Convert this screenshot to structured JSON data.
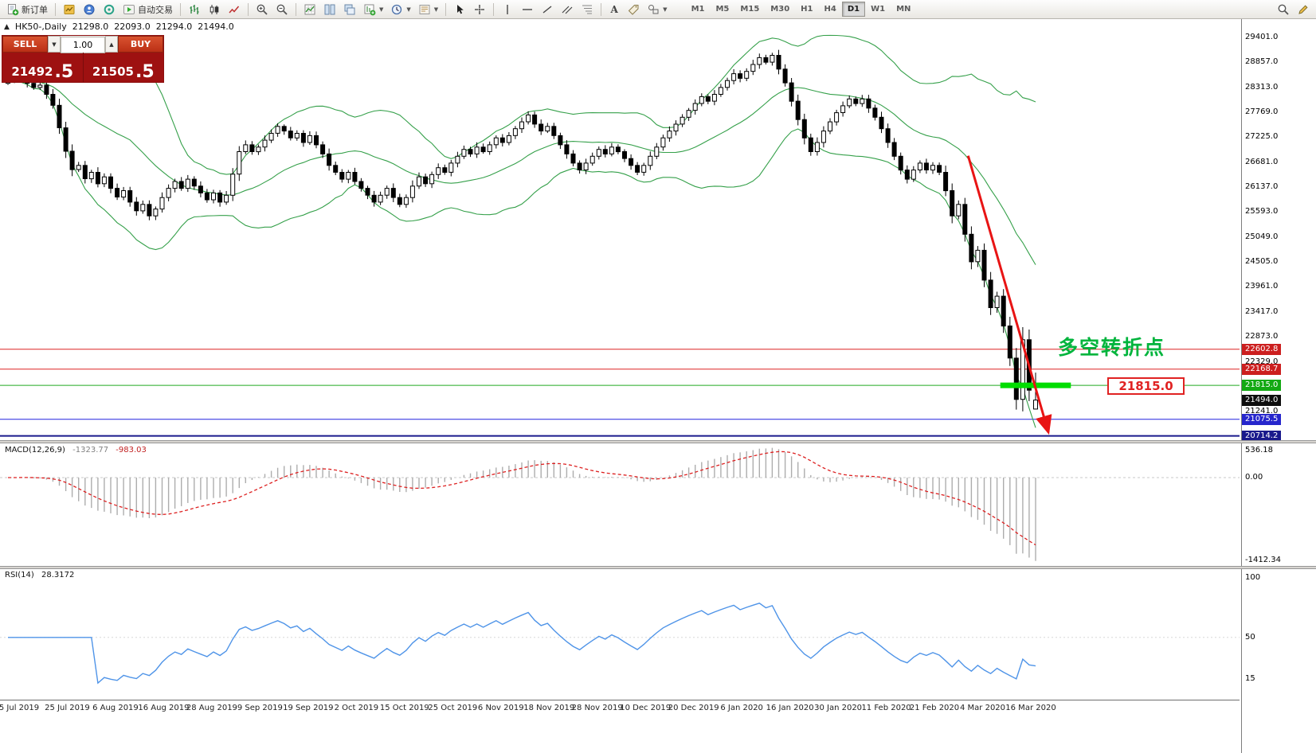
{
  "colors": {
    "bull": "#ffffff",
    "bear": "#000000",
    "candle_outline": "#000000",
    "band": "#35a04a",
    "macd_hist": "#adadad",
    "macd_signal": "#dd2020",
    "rsi_line": "#4f94e8",
    "arrow": "#e81414",
    "highlight": "#00dd00"
  },
  "toolbar": {
    "new_order_label": "新订单",
    "autotrading_label": "自动交易",
    "timeframes": [
      "M1",
      "M5",
      "M15",
      "M30",
      "H1",
      "H4",
      "D1",
      "W1",
      "MN"
    ],
    "active_timeframe": "D1"
  },
  "chart_header": {
    "symbol": "HK50-,Daily",
    "open": "21298.0",
    "high": "22093.0",
    "low": "21294.0",
    "close": "21494.0"
  },
  "quote_panel": {
    "sell_label": "SELL",
    "buy_label": "BUY",
    "volume": "1.00",
    "sell_price_main": "21492",
    "sell_price_pips": ".5",
    "buy_price_main": "21505",
    "buy_price_pips": ".5"
  },
  "annotations": {
    "turning_point_text": "多空转折点",
    "level_label": "21815.0"
  },
  "price_axis": {
    "ticks": [
      {
        "label": "29401.0",
        "price": 29401
      },
      {
        "label": "28857.0",
        "price": 28857
      },
      {
        "label": "28313.0",
        "price": 28313
      },
      {
        "label": "27769.0",
        "price": 27769
      },
      {
        "label": "27225.0",
        "price": 27225
      },
      {
        "label": "26681.0",
        "price": 26681
      },
      {
        "label": "26137.0",
        "price": 26137
      },
      {
        "label": "25593.0",
        "price": 25593
      },
      {
        "label": "25049.0",
        "price": 25049
      },
      {
        "label": "24505.0",
        "price": 24505
      },
      {
        "label": "23961.0",
        "price": 23961
      },
      {
        "label": "23417.0",
        "price": 23417
      },
      {
        "label": "22873.0",
        "price": 22873
      },
      {
        "label": "22329.0",
        "price": 22329
      },
      {
        "label": "21241.0",
        "price": 21241
      }
    ],
    "badges": [
      {
        "label": "22602.8",
        "price": 22602.8,
        "bg": "#cc1f1f"
      },
      {
        "label": "22168.7",
        "price": 22168.7,
        "bg": "#cc1f1f"
      },
      {
        "label": "21815.0",
        "price": 21815.0,
        "bg": "#13a913"
      },
      {
        "label": "21494.0",
        "price": 21494.0,
        "bg": "#0d0d0d"
      },
      {
        "label": "21075.5",
        "price": 21075.5,
        "bg": "#2626cc"
      },
      {
        "label": "20714.2",
        "price": 20714.2,
        "bg": "#1a1a8c"
      }
    ]
  },
  "macd_panel": {
    "name": "MACD(12,26,9)",
    "main_value": "-1323.77",
    "signal_value": "-983.03",
    "axis_max": "536.18",
    "axis_zero": "0.00",
    "axis_min": "-1412.34"
  },
  "rsi_panel": {
    "name": "RSI(14)",
    "value": "28.3172",
    "axis_labels": [
      {
        "label": "100",
        "value": 100
      },
      {
        "label": "50",
        "value": 50
      },
      {
        "label": "15",
        "value": 15
      }
    ]
  },
  "time_axis": {
    "labels": [
      "5 Jul 2019",
      "25 Jul 2019",
      "6 Aug 2019",
      "16 Aug 2019",
      "28 Aug 2019",
      "9 Sep 2019",
      "19 Sep 2019",
      "2 Oct 2019",
      "15 Oct 2019",
      "25 Oct 2019",
      "6 Nov 2019",
      "18 Nov 2019",
      "28 Nov 2019",
      "10 Dec 2019",
      "20 Dec 2019",
      "6 Jan 2020",
      "16 Jan 2020",
      "30 Jan 2020",
      "11 Feb 2020",
      "21 Feb 2020",
      "4 Mar 2020",
      "16 Mar 2020"
    ]
  },
  "chart_data": {
    "type": "candlestick",
    "symbol": "HK50-",
    "timeframe": "Daily",
    "price_domain_top": 29800,
    "price_domain_bottom": 20620,
    "first_open": 28400,
    "closes": [
      28450,
      28480,
      28520,
      28400,
      28310,
      28360,
      28160,
      27920,
      27430,
      26920,
      26520,
      26610,
      26320,
      26460,
      26210,
      26360,
      26110,
      25920,
      26060,
      25810,
      25620,
      25760,
      25510,
      25660,
      25910,
      26110,
      26260,
      26110,
      26310,
      26160,
      26010,
      25860,
      26010,
      25810,
      25960,
      26420,
      26910,
      27060,
      26910,
      27010,
      27160,
      27310,
      27460,
      27360,
      27210,
      27310,
      27110,
      27260,
      27060,
      26860,
      26610,
      26460,
      26310,
      26460,
      26260,
      26110,
      25960,
      25810,
      25960,
      26110,
      25910,
      25760,
      25910,
      26160,
      26360,
      26210,
      26410,
      26560,
      26460,
      26660,
      26810,
      26960,
      26860,
      27010,
      26910,
      27060,
      27210,
      27110,
      27260,
      27410,
      27560,
      27710,
      27510,
      27360,
      27460,
      27260,
      27060,
      26860,
      26660,
      26510,
      26660,
      26810,
      26960,
      26860,
      27010,
      26910,
      26760,
      26610,
      26460,
      26610,
      26810,
      27010,
      27210,
      27360,
      27510,
      27660,
      27810,
      27960,
      28110,
      28010,
      28160,
      28310,
      28460,
      28610,
      28510,
      28660,
      28810,
      28960,
      28860,
      29010,
      28710,
      28410,
      28010,
      27610,
      27210,
      26910,
      27110,
      27360,
      27560,
      27760,
      27910,
      28060,
      27960,
      28060,
      27860,
      27660,
      27410,
      27110,
      26810,
      26510,
      26310,
      26510,
      26660,
      26510,
      26610,
      26460,
      26060,
      25510,
      25760,
      25110,
      24510,
      24760,
      24110,
      23510,
      23760,
      23110,
      22410,
      21510,
      22810,
      21710,
      21494
    ],
    "last_candle_ohlc": [
      21298.0,
      22093.0,
      21294.0,
      21494.0
    ],
    "indicators": {
      "bollinger": {
        "period": 20,
        "deviation": 2
      },
      "macd": {
        "fast": 12,
        "slow": 26,
        "signal": 9,
        "readout_main": -1323.77,
        "readout_signal": -983.03
      },
      "rsi": {
        "period": 14,
        "readout": 28.3172
      }
    },
    "levels": [
      {
        "price": 22602.8,
        "color": "#dd2222",
        "width": 1
      },
      {
        "price": 22168.7,
        "color": "#dd2222",
        "width": 1
      },
      {
        "price": 21815.0,
        "color": "#22aa22",
        "width": 1
      },
      {
        "price": 21075.5,
        "color": "#2222dd",
        "width": 1
      },
      {
        "price": 20714.2,
        "color": "#1a1a8c",
        "width": 2
      }
    ],
    "highlight_segment": {
      "price": 21815.0,
      "from_idx": 154.5,
      "to_idx": 165.5,
      "width": 7
    },
    "trend_arrow": {
      "from_idx": 149.5,
      "from_price": 26820,
      "to_idx": 162.0,
      "to_price": 20790
    }
  }
}
